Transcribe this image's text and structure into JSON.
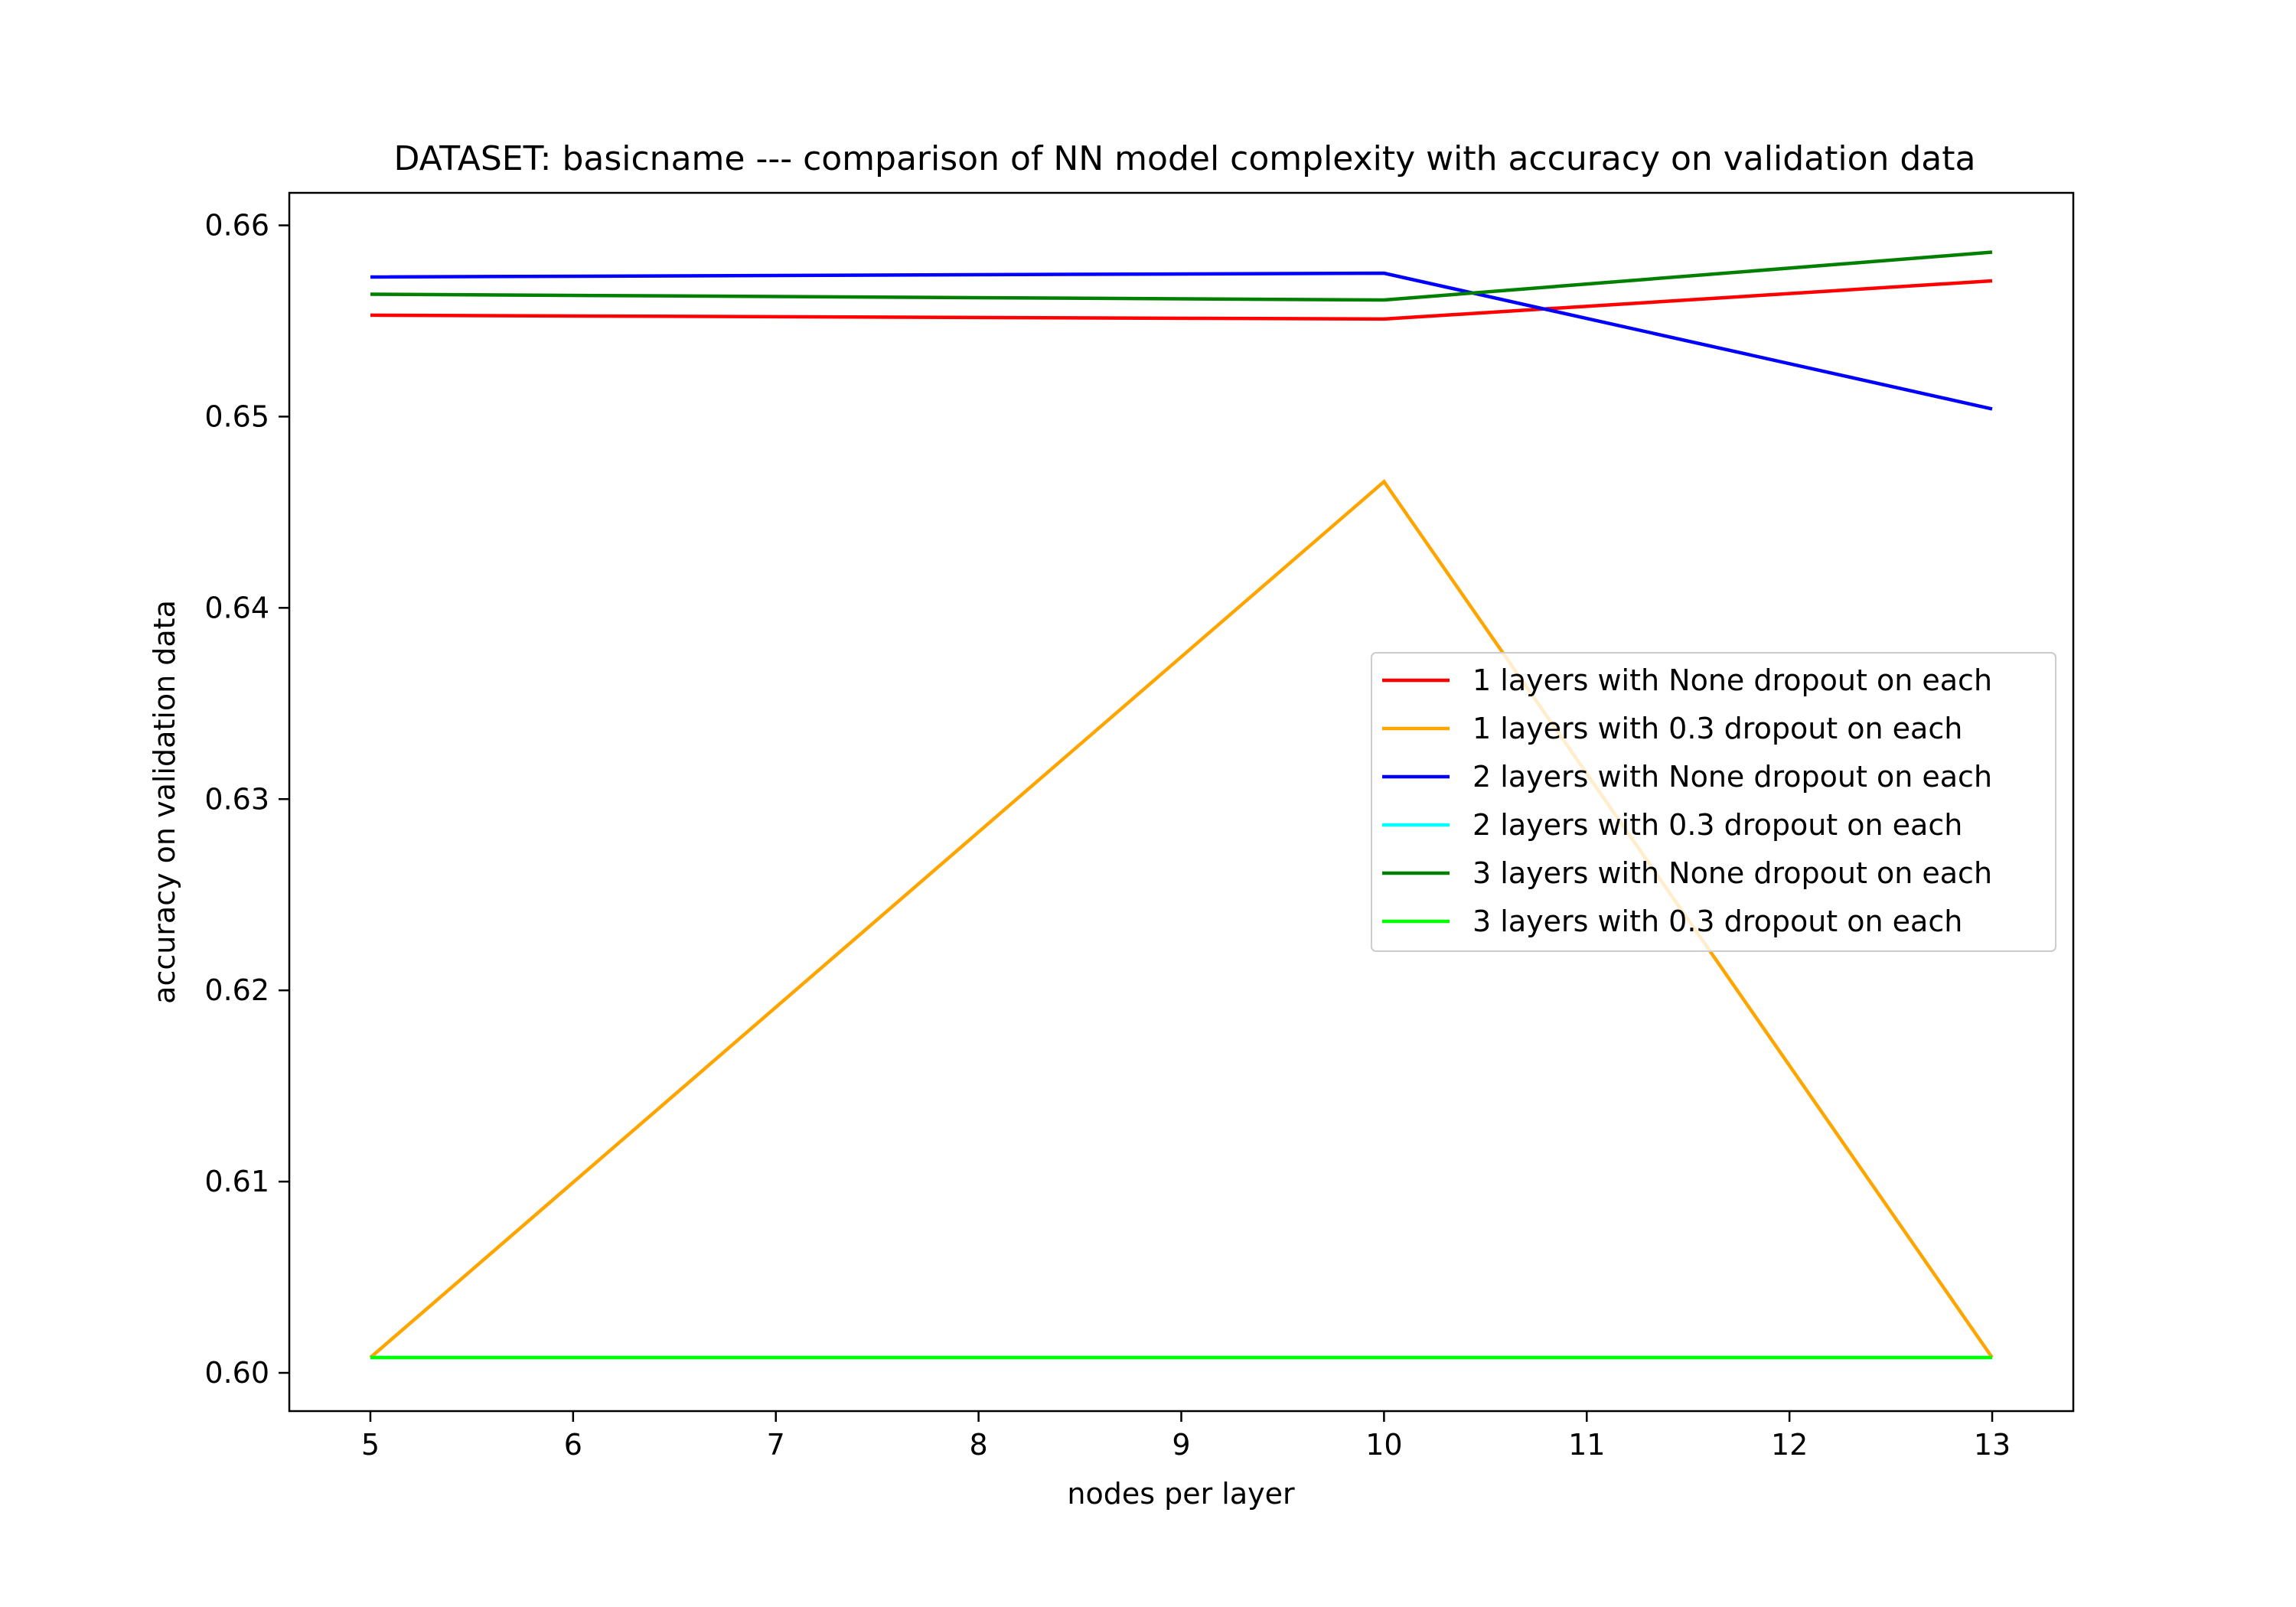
{
  "chart_data": {
    "type": "line",
    "title": "DATASET: basicname --- comparison of NN model complexity with accuracy on validation data",
    "xlabel": "nodes per layer",
    "ylabel": "accuracy on validation data",
    "xlim": [
      4.6,
      13.4
    ],
    "ylim": [
      0.598,
      0.6617
    ],
    "x_ticks": [
      5,
      6,
      7,
      8,
      9,
      10,
      11,
      12,
      13
    ],
    "y_ticks": [
      0.6,
      0.61,
      0.62,
      0.63,
      0.64,
      0.65,
      0.66
    ],
    "y_tick_labels": [
      "0.60",
      "0.61",
      "0.62",
      "0.63",
      "0.64",
      "0.65",
      "0.66"
    ],
    "x": [
      5,
      10,
      13
    ],
    "grid": false,
    "legend_position": "center-right",
    "series": [
      {
        "name": "1 layers with None dropout on each",
        "color": "#ff0000",
        "values": [
          0.6553,
          0.6551,
          0.6571
        ]
      },
      {
        "name": "1 layers with 0.3 dropout on each",
        "color": "#ffa500",
        "values": [
          0.6008,
          0.6466,
          0.6008
        ]
      },
      {
        "name": "2 layers with None dropout on each",
        "color": "#0000ff",
        "values": [
          0.6573,
          0.6575,
          0.6504
        ]
      },
      {
        "name": "2 layers with 0.3 dropout on each",
        "color": "#00ffff",
        "values": [
          0.6008,
          0.6008,
          0.6008
        ]
      },
      {
        "name": "3 layers with None dropout on each",
        "color": "#008000",
        "values": [
          0.6564,
          0.6561,
          0.6586
        ]
      },
      {
        "name": "3 layers with 0.3 dropout on each",
        "color": "#00ff00",
        "values": [
          0.6008,
          0.6008,
          0.6008
        ]
      }
    ]
  }
}
